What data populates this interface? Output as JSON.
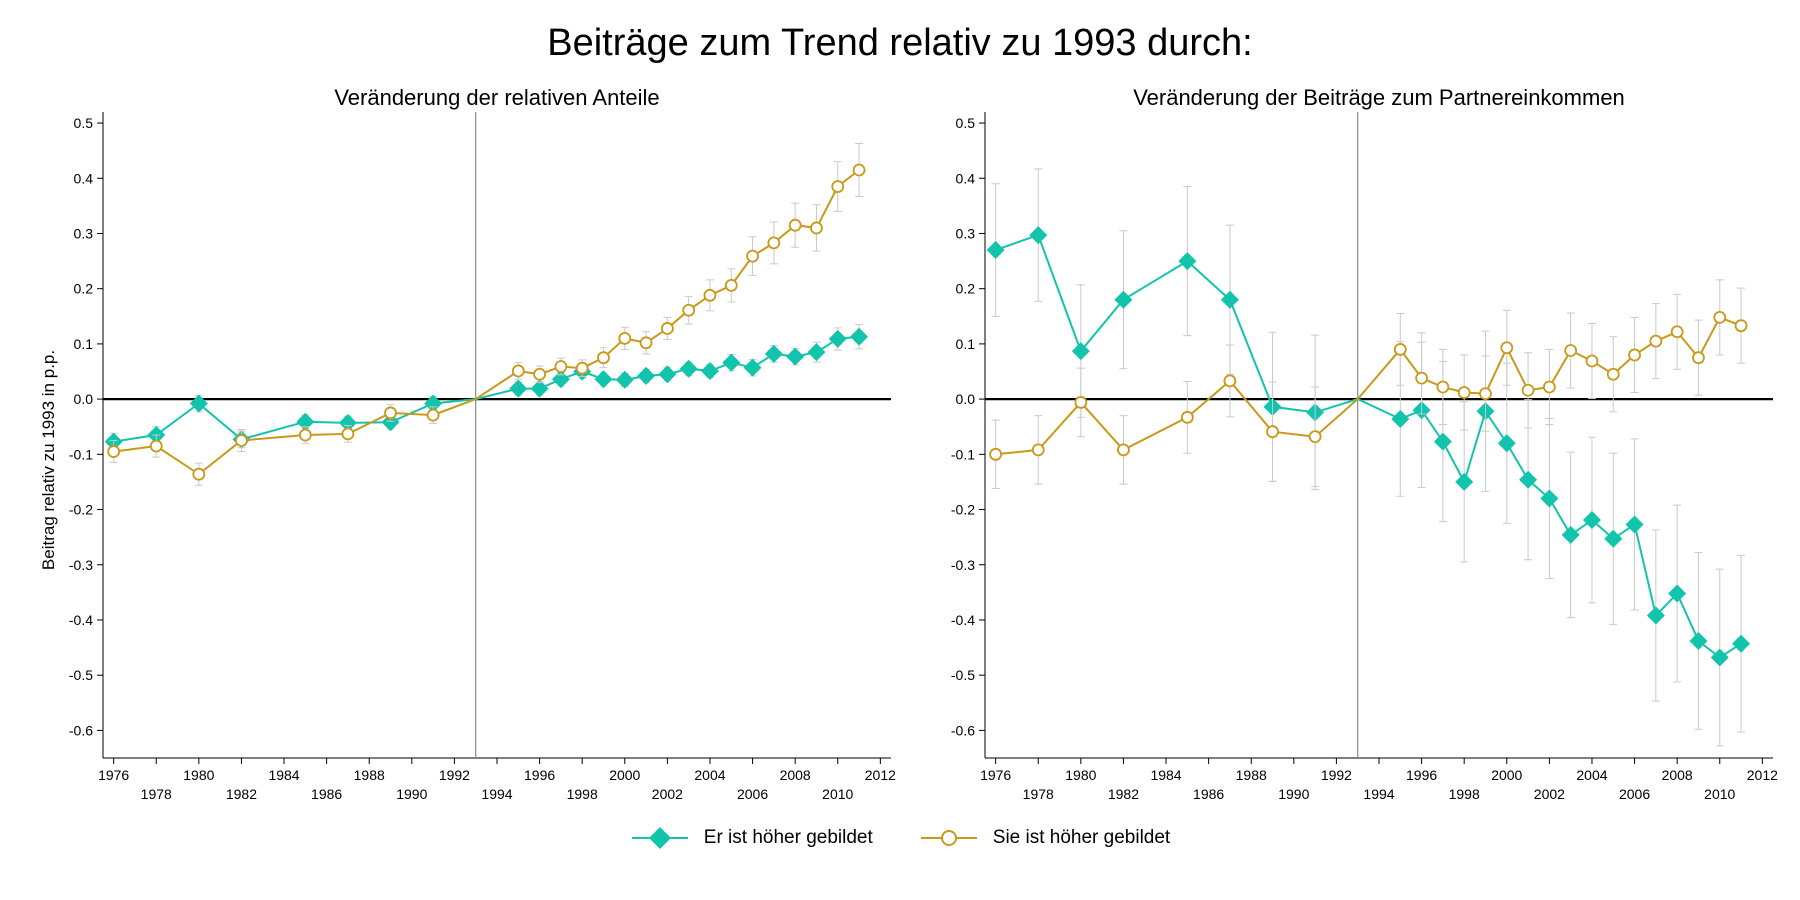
{
  "figure": {
    "title": "Beiträge zum Trend relativ zu 1993 durch:",
    "colors": {
      "er": "#13c4ad",
      "sie": "#c8991a",
      "ci": "#c9c9c9",
      "axis": "#000000",
      "vline": "#8c8c8c"
    }
  },
  "legend": [
    {
      "label": "Er ist höher gebildet",
      "marker": "filled-diamond",
      "color": "#13c4ad"
    },
    {
      "label": "Sie ist höher gebildet",
      "marker": "hollow-circle",
      "color": "#c8991a"
    }
  ],
  "chart_data": [
    {
      "type": "line",
      "title": "Veränderung der relativen Anteile",
      "ylabel": "Beitrag relativ zu 1993 in p.p.",
      "xlabel": "",
      "xlim": [
        1975.5,
        2012.5
      ],
      "ylim": [
        -0.65,
        0.52
      ],
      "yticks": [
        "0.5",
        "0.4",
        "0.3",
        "0.2",
        "0.1",
        "0.0",
        "-0.1",
        "-0.2",
        "-0.3",
        "-0.4",
        "-0.5",
        "-0.6"
      ],
      "xticks_top": [
        "1976",
        "1980",
        "1984",
        "1988",
        "1992",
        "1996",
        "2000",
        "2004",
        "2008",
        "2012"
      ],
      "xticks_bottom": [
        "1978",
        "1982",
        "1986",
        "1990",
        "1994",
        "1998",
        "2002",
        "2006",
        "2010"
      ],
      "reference_year": 1993,
      "series": [
        {
          "name": "Er ist höher gebildet",
          "x": [
            1976,
            1978,
            1980,
            1982,
            1985,
            1987,
            1989,
            1991,
            1993,
            1995,
            1996,
            1997,
            1998,
            1999,
            2000,
            2001,
            2002,
            2003,
            2004,
            2005,
            2006,
            2007,
            2008,
            2009,
            2010,
            2011
          ],
          "y": [
            -0.077,
            -0.065,
            -0.008,
            -0.073,
            -0.041,
            -0.043,
            -0.042,
            -0.008,
            0.0,
            0.019,
            0.019,
            0.036,
            0.05,
            0.036,
            0.035,
            0.042,
            0.045,
            0.055,
            0.051,
            0.066,
            0.057,
            0.082,
            0.077,
            0.085,
            0.109,
            0.113
          ],
          "ci": [
            0.015,
            0.015,
            0.015,
            0.015,
            0.012,
            0.012,
            0.012,
            0.012,
            0,
            0.012,
            0.012,
            0.012,
            0.012,
            0.012,
            0.012,
            0.012,
            0.012,
            0.012,
            0.012,
            0.015,
            0.015,
            0.015,
            0.015,
            0.018,
            0.02,
            0.022
          ]
        },
        {
          "name": "Sie ist höher gebildet",
          "x": [
            1976,
            1978,
            1980,
            1982,
            1985,
            1987,
            1989,
            1991,
            1993,
            1995,
            1996,
            1997,
            1998,
            1999,
            2000,
            2001,
            2002,
            2003,
            2004,
            2005,
            2006,
            2007,
            2008,
            2009,
            2010,
            2011
          ],
          "y": [
            -0.095,
            -0.085,
            -0.136,
            -0.075,
            -0.065,
            -0.063,
            -0.025,
            -0.029,
            0.0,
            0.051,
            0.045,
            0.059,
            0.056,
            0.075,
            0.11,
            0.102,
            0.128,
            0.161,
            0.188,
            0.206,
            0.259,
            0.283,
            0.315,
            0.31,
            0.385,
            0.415
          ],
          "ci": [
            0.02,
            0.02,
            0.02,
            0.02,
            0.015,
            0.015,
            0.015,
            0.015,
            0,
            0.015,
            0.015,
            0.015,
            0.015,
            0.018,
            0.02,
            0.02,
            0.02,
            0.025,
            0.028,
            0.03,
            0.035,
            0.038,
            0.04,
            0.042,
            0.045,
            0.048
          ]
        }
      ]
    },
    {
      "type": "line",
      "title": "Veränderung der Beiträge zum Partnereinkommen",
      "ylabel": "",
      "xlabel": "",
      "xlim": [
        1975.5,
        2012.5
      ],
      "ylim": [
        -0.65,
        0.52
      ],
      "yticks": [
        "0.5",
        "0.4",
        "0.3",
        "0.2",
        "0.1",
        "0.0",
        "-0.1",
        "-0.2",
        "-0.3",
        "-0.4",
        "-0.5",
        "-0.6"
      ],
      "xticks_top": [
        "1976",
        "1980",
        "1984",
        "1988",
        "1992",
        "1996",
        "2000",
        "2004",
        "2008",
        "2012"
      ],
      "xticks_bottom": [
        "1978",
        "1982",
        "1986",
        "1990",
        "1994",
        "1998",
        "2002",
        "2006",
        "2010"
      ],
      "reference_year": 1993,
      "series": [
        {
          "name": "Er ist höher gebildet",
          "x": [
            1976,
            1978,
            1980,
            1982,
            1985,
            1987,
            1989,
            1991,
            1993,
            1995,
            1996,
            1997,
            1998,
            1999,
            2000,
            2001,
            2002,
            2003,
            2004,
            2005,
            2006,
            2007,
            2008,
            2009,
            2010,
            2011
          ],
          "y": [
            0.27,
            0.297,
            0.087,
            0.18,
            0.25,
            0.18,
            -0.014,
            -0.024,
            0.0,
            -0.036,
            -0.02,
            -0.077,
            -0.15,
            -0.022,
            -0.08,
            -0.146,
            -0.18,
            -0.246,
            -0.219,
            -0.253,
            -0.227,
            -0.392,
            -0.352,
            -0.438,
            -0.468,
            -0.443
          ],
          "ci": [
            0.12,
            0.12,
            0.12,
            0.125,
            0.135,
            0.135,
            0.135,
            0.14,
            0,
            0.14,
            0.14,
            0.145,
            0.145,
            0.145,
            0.145,
            0.145,
            0.145,
            0.15,
            0.15,
            0.155,
            0.155,
            0.155,
            0.16,
            0.16,
            0.16,
            0.16
          ]
        },
        {
          "name": "Sie ist höher gebildet",
          "x": [
            1976,
            1978,
            1980,
            1982,
            1985,
            1987,
            1989,
            1991,
            1993,
            1995,
            1996,
            1997,
            1998,
            1999,
            2000,
            2001,
            2002,
            2003,
            2004,
            2005,
            2006,
            2007,
            2008,
            2009,
            2010,
            2011
          ],
          "y": [
            -0.1,
            -0.092,
            -0.006,
            -0.092,
            -0.033,
            0.033,
            -0.059,
            -0.068,
            0.0,
            0.09,
            0.038,
            0.022,
            0.012,
            0.01,
            0.093,
            0.016,
            0.022,
            0.088,
            0.069,
            0.045,
            0.08,
            0.105,
            0.122,
            0.075,
            0.148,
            0.133
          ],
          "ci": [
            0.062,
            0.062,
            0.062,
            0.062,
            0.065,
            0.065,
            0.09,
            0.09,
            0,
            0.065,
            0.065,
            0.068,
            0.068,
            0.068,
            0.068,
            0.068,
            0.068,
            0.068,
            0.068,
            0.068,
            0.068,
            0.068,
            0.068,
            0.068,
            0.068,
            0.068
          ]
        }
      ]
    }
  ]
}
